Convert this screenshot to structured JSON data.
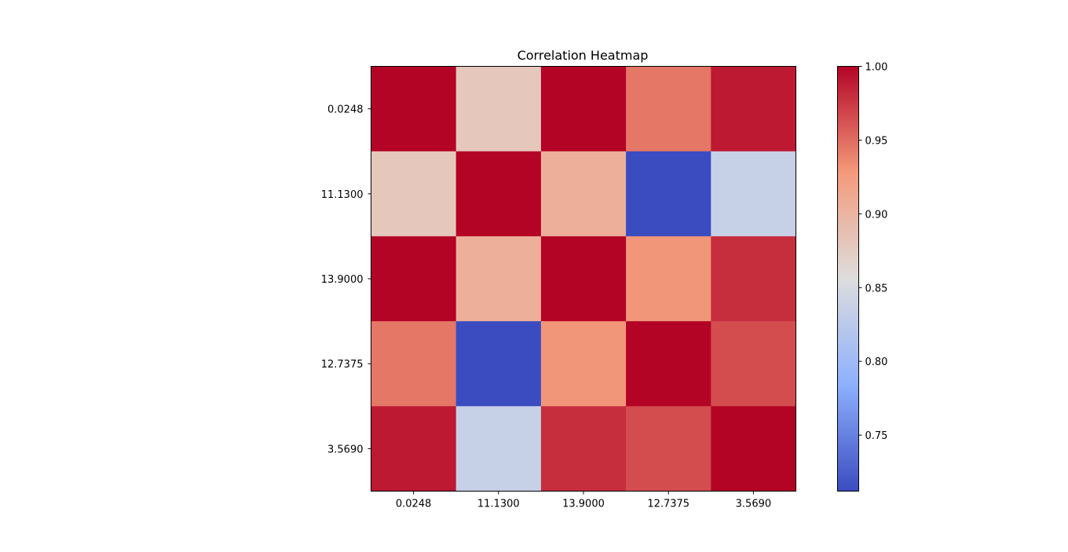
{
  "chart_data": {
    "type": "heatmap",
    "title": "Correlation Heatmap",
    "x_labels": [
      "0.0248",
      "11.1300",
      "13.9000",
      "12.7375",
      "3.5690"
    ],
    "y_labels": [
      "0.0248",
      "11.1300",
      "13.9000",
      "12.7375",
      "3.5690"
    ],
    "values": [
      [
        1.0,
        0.88,
        1.0,
        0.945,
        0.99
      ],
      [
        0.88,
        1.0,
        0.905,
        0.712,
        0.835
      ],
      [
        1.0,
        0.905,
        1.0,
        0.93,
        0.98
      ],
      [
        0.945,
        0.712,
        0.93,
        1.0,
        0.965
      ],
      [
        0.99,
        0.835,
        0.98,
        0.965,
        1.0
      ]
    ],
    "colormap": "coolwarm",
    "vmin": 0.712,
    "vmax": 1.0,
    "colorbar_ticks": [
      "0.75",
      "0.80",
      "0.85",
      "0.90",
      "0.95",
      "1.00"
    ],
    "colorbar_tick_values": [
      0.75,
      0.8,
      0.85,
      0.9,
      0.95,
      1.0
    ],
    "xlabel": "",
    "ylabel": ""
  }
}
